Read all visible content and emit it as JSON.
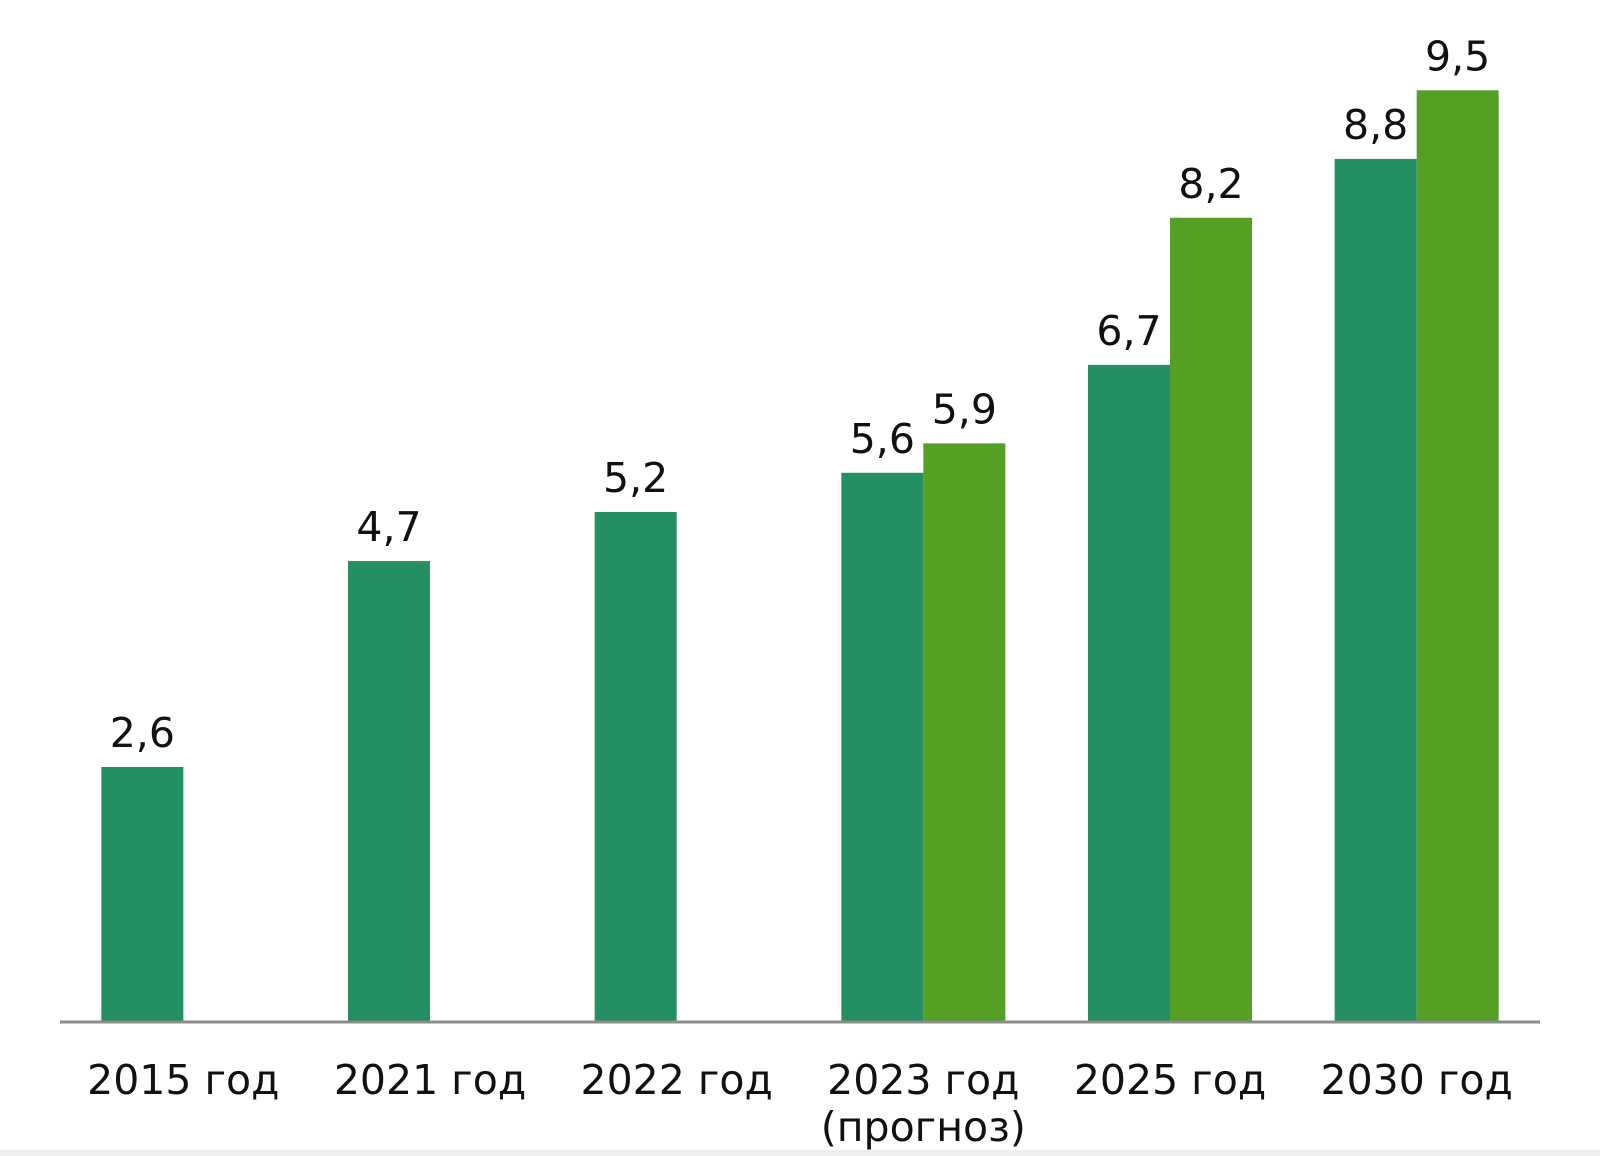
{
  "chart_data": {
    "type": "bar",
    "categories": [
      "2015 год",
      "2021 год",
      "2022 год",
      "2023 год\n(прогноз)",
      "2025 год",
      "2030 год"
    ],
    "series": [
      {
        "color": "#248f63",
        "values": [
          2.6,
          4.7,
          5.2,
          5.6,
          6.7,
          8.8
        ],
        "value_labels": [
          "2,6",
          "4,7",
          "5,2",
          "5,6",
          "6,7",
          "8,8"
        ]
      },
      {
        "color": "#55a024",
        "values": [
          null,
          null,
          null,
          5.9,
          8.2,
          9.5
        ],
        "value_labels": [
          null,
          null,
          null,
          "5,9",
          "8,2",
          "9,5"
        ]
      }
    ],
    "ylim": [
      0,
      10.4
    ]
  }
}
